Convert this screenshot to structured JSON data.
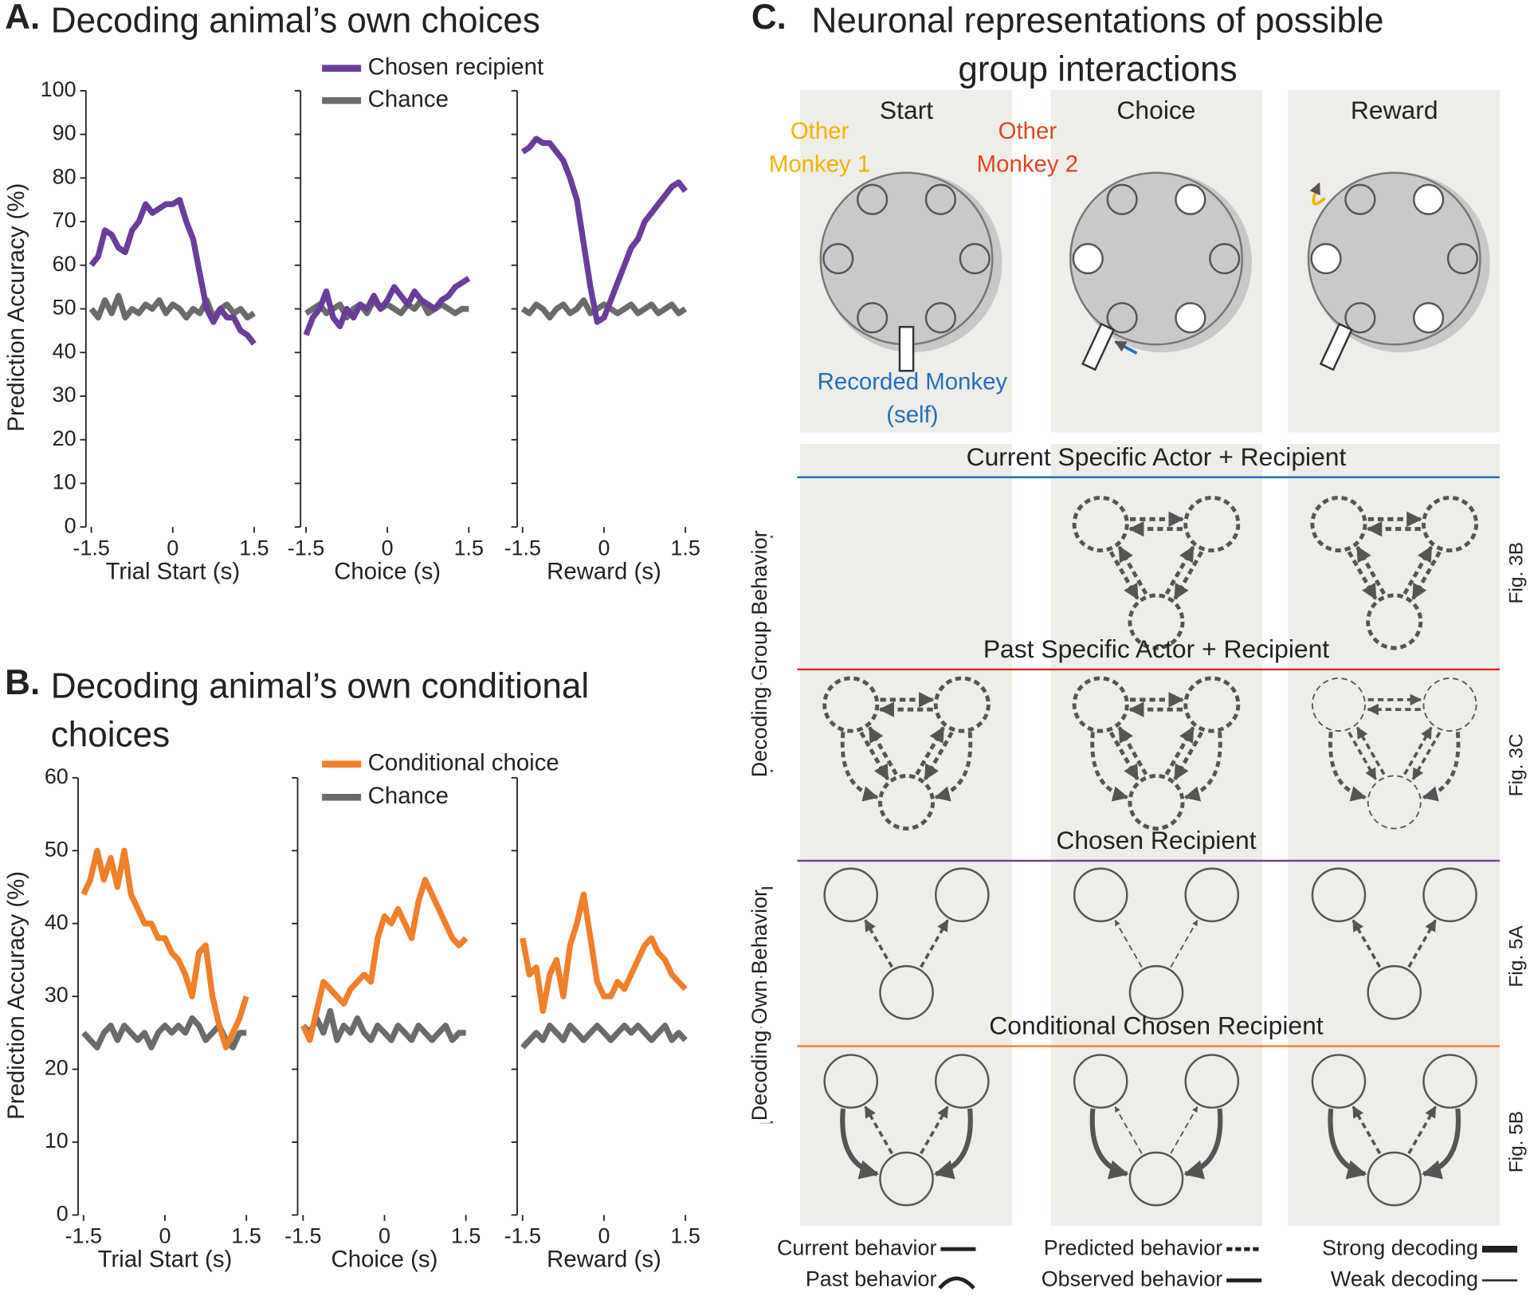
{
  "chart_data": [
    {
      "type": "line",
      "panel": "A.",
      "title": "Decoding animal’s own choices",
      "ylabel": "Prediction Accuracy (%)",
      "ylim": [
        0,
        100
      ],
      "yticks": [
        0,
        10,
        20,
        30,
        40,
        50,
        60,
        70,
        80,
        90,
        100
      ],
      "xlim": [
        -1.6,
        1.6
      ],
      "xticks": [
        -1.5,
        0,
        1.5
      ],
      "series": [
        {
          "name": "Chosen recipient",
          "color": "#6a3d9a"
        },
        {
          "name": "Chance",
          "color": "#6b6b6b"
        }
      ],
      "x": [
        -1.5,
        -1.375,
        -1.25,
        -1.125,
        -1,
        -0.875,
        -0.75,
        -0.625,
        -0.5,
        -0.375,
        -0.25,
        -0.125,
        0,
        0.125,
        0.25,
        0.375,
        0.5,
        0.625,
        0.75,
        0.875,
        1,
        1.125,
        1.25,
        1.375,
        1.5
      ],
      "subplots": [
        {
          "xlabel": "Trial Start (s)",
          "series": [
            {
              "values": [
                60,
                62,
                68,
                67,
                64,
                63,
                68,
                70,
                74,
                72,
                73,
                74,
                74,
                75,
                70,
                66,
                58,
                50,
                47,
                50,
                48,
                48,
                45,
                44,
                42
              ]
            },
            {
              "values": [
                50,
                48,
                52,
                49,
                53,
                48,
                50,
                49,
                51,
                50,
                52,
                49,
                51,
                50,
                48,
                50,
                49,
                52,
                48,
                50,
                51,
                49,
                50,
                48,
                49
              ]
            }
          ]
        },
        {
          "xlabel": "Choice (s)",
          "series": [
            {
              "values": [
                44,
                48,
                50,
                54,
                48,
                46,
                50,
                48,
                51,
                50,
                53,
                50,
                52,
                55,
                53,
                51,
                54,
                52,
                51,
                50,
                52,
                53,
                55,
                56,
                57
              ]
            },
            {
              "values": [
                49,
                50,
                51,
                49,
                50,
                51,
                48,
                50,
                51,
                49,
                52,
                50,
                51,
                50,
                49,
                51,
                50,
                52,
                49,
                50,
                51,
                50,
                49,
                50,
                50
              ]
            }
          ]
        },
        {
          "xlabel": "Reward (s)",
          "series": [
            {
              "values": [
                86,
                87,
                89,
                88,
                88,
                86,
                84,
                80,
                75,
                65,
                55,
                47,
                48,
                52,
                56,
                60,
                64,
                66,
                70,
                72,
                74,
                76,
                78,
                79,
                77
              ]
            },
            {
              "values": [
                50,
                49,
                51,
                50,
                48,
                50,
                51,
                49,
                50,
                52,
                49,
                50,
                51,
                50,
                49,
                50,
                51,
                49,
                50,
                51,
                49,
                50,
                51,
                49,
                50
              ]
            }
          ]
        }
      ]
    },
    {
      "type": "line",
      "panel": "B.",
      "title": "Decoding animal’s own conditional choices",
      "ylabel": "Prediction Accuracy (%)",
      "ylim": [
        0,
        60
      ],
      "yticks": [
        0,
        10,
        20,
        30,
        40,
        50,
        60
      ],
      "xlim": [
        -1.6,
        1.6
      ],
      "xticks": [
        -1.5,
        0,
        1.5
      ],
      "series": [
        {
          "name": "Conditional choice",
          "color": "#f07f2a"
        },
        {
          "name": "Chance",
          "color": "#6b6b6b"
        }
      ],
      "x": [
        -1.5,
        -1.375,
        -1.25,
        -1.125,
        -1,
        -0.875,
        -0.75,
        -0.625,
        -0.5,
        -0.375,
        -0.25,
        -0.125,
        0,
        0.125,
        0.25,
        0.375,
        0.5,
        0.625,
        0.75,
        0.875,
        1,
        1.125,
        1.25,
        1.375,
        1.5
      ],
      "subplots": [
        {
          "xlabel": "Trial Start (s)",
          "series": [
            {
              "values": [
                44,
                46,
                50,
                46,
                49,
                45,
                50,
                44,
                42,
                40,
                40,
                38,
                38,
                36,
                35,
                33,
                30,
                36,
                37,
                30,
                26,
                23,
                25,
                27,
                30
              ]
            },
            {
              "values": [
                25,
                24,
                23,
                25,
                26,
                24,
                26,
                25,
                24,
                25,
                23,
                25,
                26,
                25,
                26,
                25,
                27,
                26,
                24,
                25,
                26,
                24,
                23,
                25,
                25
              ]
            }
          ]
        },
        {
          "xlabel": "Choice (s)",
          "series": [
            {
              "values": [
                26,
                24,
                28,
                32,
                31,
                30,
                29,
                31,
                32,
                33,
                32,
                38,
                41,
                40,
                42,
                40,
                38,
                43,
                46,
                44,
                42,
                40,
                38,
                37,
                38
              ]
            },
            {
              "values": [
                26,
                25,
                27,
                25,
                28,
                24,
                26,
                25,
                27,
                25,
                24,
                26,
                25,
                24,
                26,
                25,
                24,
                26,
                25,
                24,
                25,
                26,
                24,
                25,
                25
              ]
            }
          ]
        },
        {
          "xlabel": "Reward (s)",
          "series": [
            {
              "values": [
                38,
                33,
                34,
                28,
                33,
                35,
                30,
                37,
                40,
                44,
                38,
                32,
                30,
                30,
                32,
                31,
                33,
                35,
                37,
                38,
                36,
                35,
                33,
                32,
                31
              ]
            },
            {
              "values": [
                23,
                24,
                25,
                24,
                26,
                25,
                24,
                26,
                25,
                24,
                25,
                26,
                25,
                24,
                25,
                26,
                25,
                26,
                25,
                24,
                25,
                26,
                24,
                25,
                24
              ]
            }
          ]
        }
      ]
    }
  ],
  "diagram": {
    "label": "C.",
    "title": "Neuronal representations of possible group interactions",
    "stages": [
      "Start",
      "Choice",
      "Reward"
    ],
    "monkeys": [
      {
        "label": "Other Monkey 1",
        "color": "#f2b200"
      },
      {
        "label": "Other Monkey 2",
        "color": "#e0461e"
      },
      {
        "label": "Recorded Monkey (self)",
        "color": "#1f6fc0"
      }
    ],
    "rows": [
      {
        "title": "Current Specific Actor + Recipient",
        "color": "#1f6fc0",
        "figure": "Fig. 3B"
      },
      {
        "title": "Past Specific Actor + Recipient",
        "color": "#d9262c",
        "figure": "Fig. 3C"
      },
      {
        "title": "Chosen Recipient",
        "color": "#6a3d9a",
        "figure": "Fig. 5A"
      },
      {
        "title": "Conditional Chosen Recipient",
        "color": "#f07f2a",
        "figure": "Fig. 5B"
      }
    ],
    "groups": [
      "Decoding Group Behavior",
      "Decoding Own Behavior"
    ],
    "legend": [
      "Current behavior",
      "Past behavior",
      "Predicted behavior",
      "Observed behavior",
      "Strong decoding",
      "Weak decoding"
    ]
  }
}
